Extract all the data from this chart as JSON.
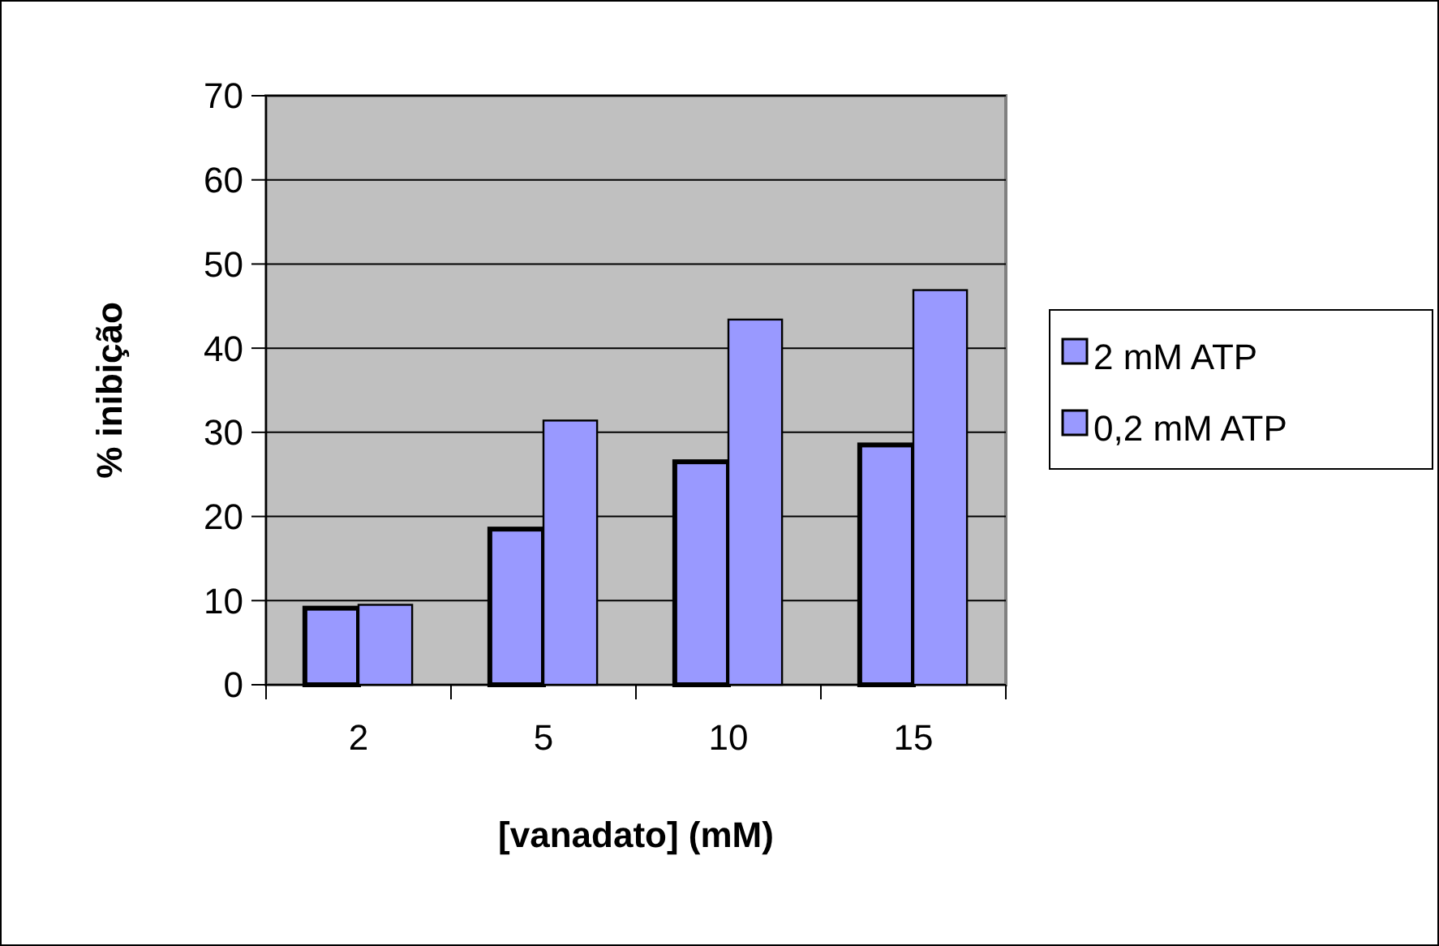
{
  "chart_data": {
    "type": "bar",
    "xlabel": "[vanadato] (mM)",
    "ylabel": "% inibição",
    "categories": [
      "2",
      "5",
      "10",
      "15"
    ],
    "series": [
      {
        "name": "2 mM ATP",
        "color": "#9999ff",
        "values": [
          9.1,
          18.5,
          26.5,
          28.5
        ]
      },
      {
        "name": "0,2 mM ATP",
        "color": "#9999ff",
        "values": [
          9.5,
          31.4,
          43.4,
          46.9
        ]
      }
    ],
    "ylim": [
      0,
      70
    ],
    "yticks": [
      0,
      10,
      20,
      30,
      40,
      50,
      60,
      70
    ],
    "grid": "y",
    "legend": "right"
  }
}
